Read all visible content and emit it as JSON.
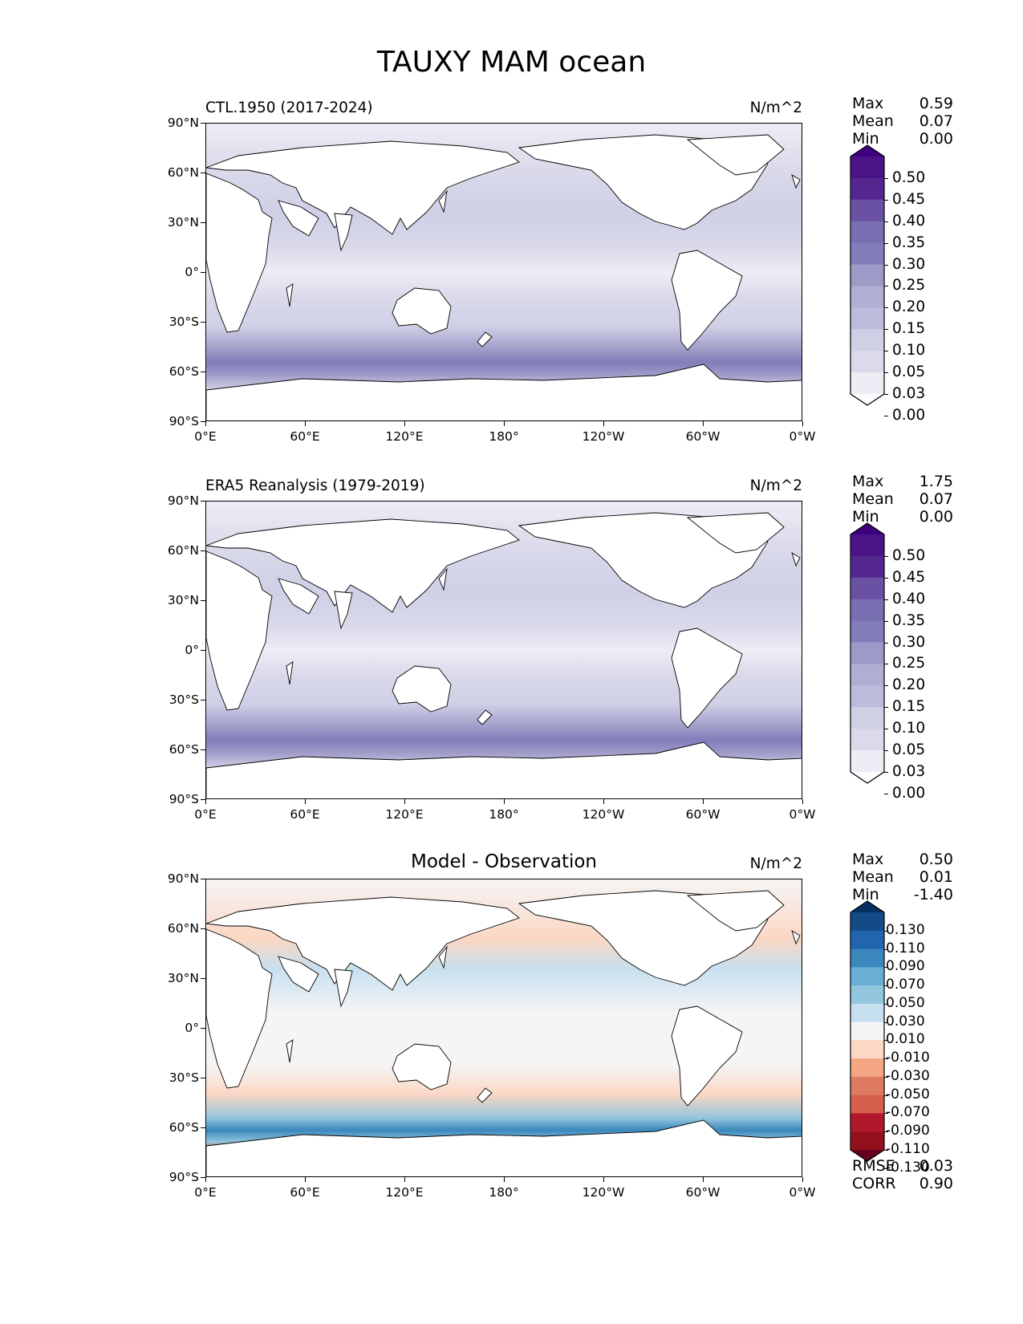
{
  "figure": {
    "title": "TAUXY MAM ocean"
  },
  "axes": {
    "lat_ticks": [
      "90°N",
      "60°N",
      "30°N",
      "0°",
      "30°S",
      "60°S",
      "90°S"
    ],
    "lon_ticks": [
      "0°E",
      "60°E",
      "120°E",
      "180°",
      "120°W",
      "60°W",
      "0°W"
    ]
  },
  "panels": [
    {
      "title": "CTL.1950 (2017-2024)",
      "units": "N/m^2",
      "stats": [
        {
          "name": "Max",
          "value": "0.59"
        },
        {
          "name": "Mean",
          "value": "0.07"
        },
        {
          "name": "Min",
          "value": "0.00"
        }
      ],
      "colorbar": {
        "labels": [
          "0.50",
          "0.45",
          "0.40",
          "0.35",
          "0.30",
          "0.25",
          "0.20",
          "0.15",
          "0.10",
          "0.05",
          "0.03",
          "0.00"
        ],
        "colors": [
          "#3f007d",
          "#4a1486",
          "#54278f",
          "#6a51a3",
          "#796eb2",
          "#807dba",
          "#9e9ac8",
          "#b1aed4",
          "#bcbddc",
          "#cfcfe6",
          "#dadaeb",
          "#eeedf5",
          "#fcfbfd"
        ]
      }
    },
    {
      "title": "ERA5 Reanalysis (1979-2019)",
      "units": "N/m^2",
      "stats": [
        {
          "name": "Max",
          "value": "1.75"
        },
        {
          "name": "Mean",
          "value": "0.07"
        },
        {
          "name": "Min",
          "value": "0.00"
        }
      ],
      "colorbar": {
        "labels": [
          "0.50",
          "0.45",
          "0.40",
          "0.35",
          "0.30",
          "0.25",
          "0.20",
          "0.15",
          "0.10",
          "0.05",
          "0.03",
          "0.00"
        ],
        "colors": [
          "#3f007d",
          "#4a1486",
          "#54278f",
          "#6a51a3",
          "#796eb2",
          "#807dba",
          "#9e9ac8",
          "#b1aed4",
          "#bcbddc",
          "#cfcfe6",
          "#dadaeb",
          "#eeedf5",
          "#fcfbfd"
        ]
      }
    },
    {
      "title": "Model - Observation",
      "units": "N/m^2",
      "stats": [
        {
          "name": "Max",
          "value": "0.50"
        },
        {
          "name": "Mean",
          "value": "0.01"
        },
        {
          "name": "Min",
          "value": "-1.40"
        }
      ],
      "extra_stats": [
        {
          "name": "RMSE",
          "value": "0.03"
        },
        {
          "name": "CORR",
          "value": "0.90"
        }
      ],
      "colorbar": {
        "labels": [
          "0.130",
          "0.110",
          "0.090",
          "0.070",
          "0.050",
          "0.030",
          "0.010",
          "-0.010",
          "-0.030",
          "-0.050",
          "-0.070",
          "-0.090",
          "-0.110",
          "-0.130"
        ],
        "colors": [
          "#053061",
          "#134b87",
          "#2166ac",
          "#3a87bd",
          "#6aaed6",
          "#92c5de",
          "#c7e0ef",
          "#f4f4f4",
          "#fbd7c4",
          "#f4a582",
          "#e07b63",
          "#d6604d",
          "#b2182b",
          "#93111f",
          "#67001f"
        ]
      }
    }
  ],
  "colors": {
    "land": "#ffffff",
    "coastline": "#000000",
    "diff_neutral": "#f5f5f5"
  }
}
